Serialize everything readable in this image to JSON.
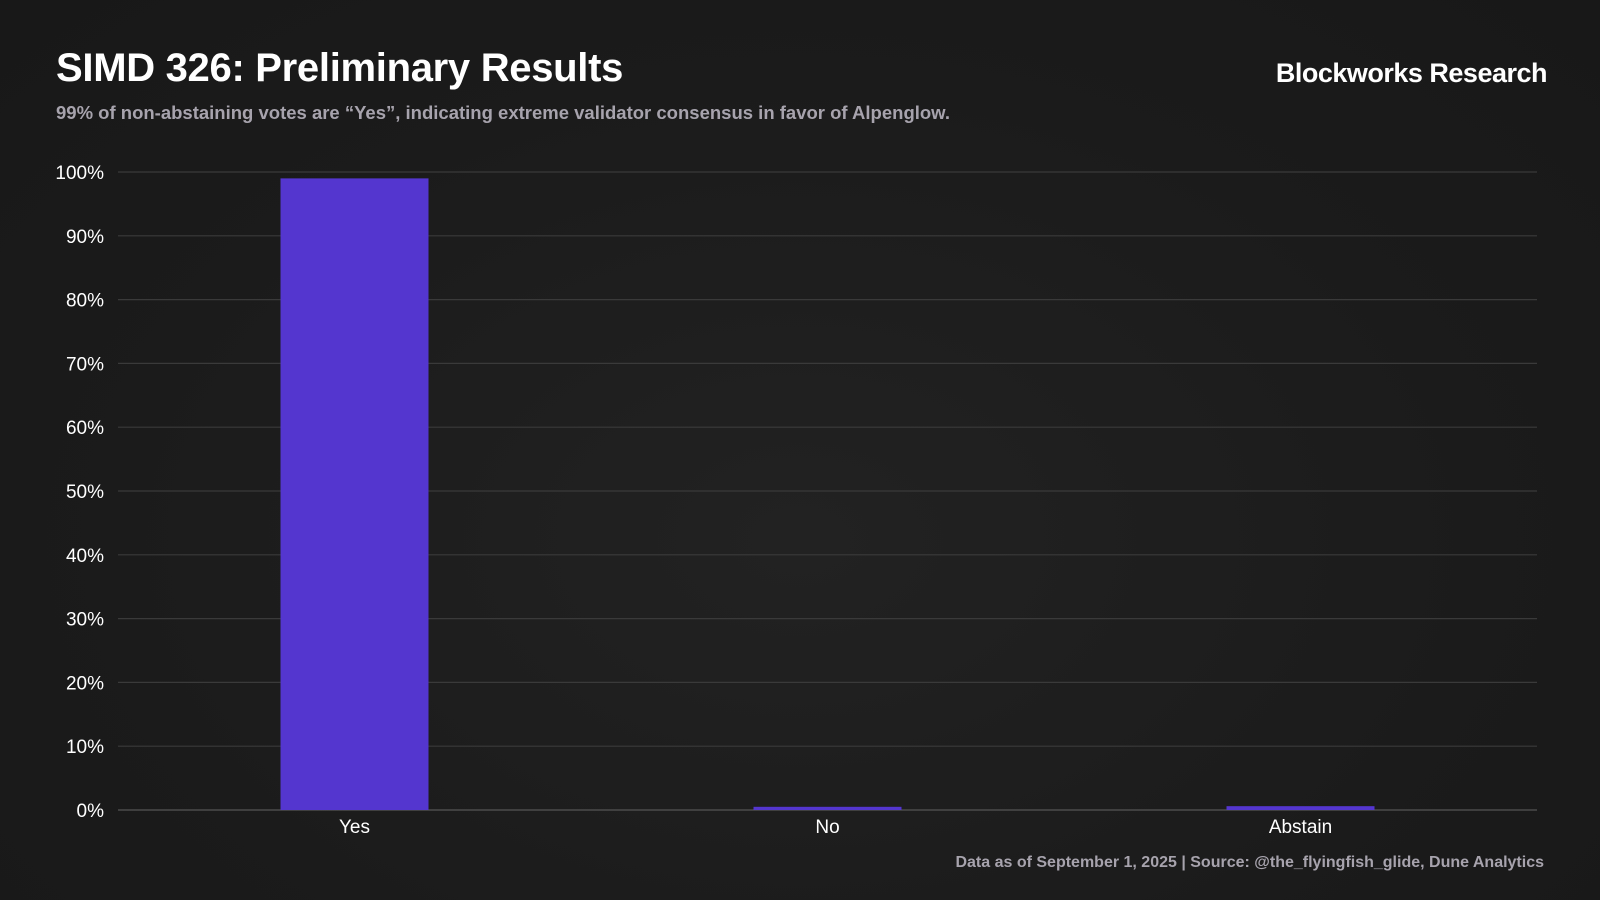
{
  "header": {
    "title": "SIMD 326: Preliminary Results",
    "subtitle": "99% of non-abstaining votes are “Yes”, indicating extreme validator consensus in favor of Alpenglow.",
    "brand": "Blockworks Research"
  },
  "footer": {
    "source": "Data as of September 1, 2025 | Source: @the_flyingfish_glide, Dune Analytics"
  },
  "colors": {
    "bar": "#5436cf",
    "grid": "#3a3a3a",
    "background": "#1c1c1c",
    "text": "#ffffff",
    "muted_text": "#a7a3ad"
  },
  "chart_data": {
    "type": "bar",
    "categories": [
      "Yes",
      "No",
      "Abstain"
    ],
    "values": [
      99.0,
      0.5,
      0.6
    ],
    "ylim": [
      0,
      100
    ],
    "yticks": [
      0,
      10,
      20,
      30,
      40,
      50,
      60,
      70,
      80,
      90,
      100
    ],
    "ytick_format": "percent",
    "grid": true,
    "legend": "none",
    "xlabel": "",
    "ylabel": ""
  }
}
